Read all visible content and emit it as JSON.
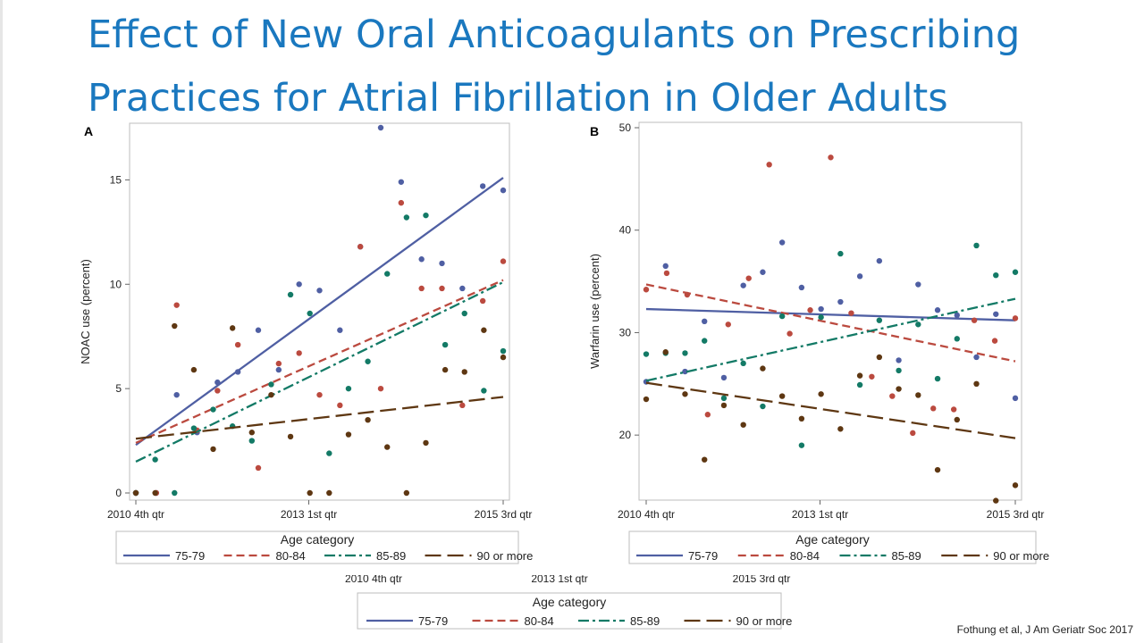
{
  "title": "Effect of New Oral Anticoagulants on Prescribing Practices for Atrial Fibrillation in Older Adults",
  "citation": "Fothung et al, J Am Geriatr Soc 2017",
  "legend": {
    "title": "Age category",
    "entries": [
      "75-79",
      "80-84",
      "85-89",
      "90 or more"
    ]
  },
  "bottom_legend_title": "Age category",
  "ghost_ticks": [
    "2010 4th qtr",
    "2013 1st qtr",
    "2015 3rd qtr"
  ],
  "colors": {
    "title": "#1a78bf",
    "75-79": "#4f5fa3",
    "80-84": "#bb4a3f",
    "85-89": "#137a66",
    "90 or more": "#5e3712"
  },
  "chart_data": [
    {
      "panel": "A",
      "type": "scatter",
      "ylabel": "NOAC use (percent)",
      "xlabel": "",
      "ylim": [
        0,
        17.5
      ],
      "yticks": [
        0,
        5,
        10,
        15
      ],
      "x_tick_labels": [
        "2010 4th qtr",
        "2013 1st qtr",
        "2015 3rd qtr"
      ],
      "series": [
        {
          "name": "75-79",
          "style": "solid",
          "trend": [
            2.3,
            15.1
          ],
          "values": [
            0.0,
            0.0,
            4.7,
            2.9,
            5.3,
            5.8,
            7.8,
            5.9,
            10.0,
            9.7,
            7.8,
            11.8,
            17.5,
            14.9,
            11.2,
            11.0,
            9.8,
            14.7,
            14.5
          ]
        },
        {
          "name": "80-84",
          "style": "dash",
          "trend": [
            2.4,
            10.2
          ],
          "values": [
            0.0,
            0.0,
            9.0,
            3.0,
            4.9,
            7.1,
            1.2,
            6.2,
            6.7,
            4.7,
            4.2,
            11.8,
            5.0,
            13.9,
            9.8,
            9.8,
            4.2,
            9.2,
            11.1
          ]
        },
        {
          "name": "85-89",
          "style": "dashdot",
          "trend": [
            1.5,
            10.1
          ],
          "values": [
            0.0,
            1.6,
            0.0,
            3.1,
            4.0,
            3.2,
            2.5,
            5.2,
            9.5,
            8.6,
            1.9,
            5.0,
            6.3,
            10.5,
            13.2,
            13.3,
            7.1,
            8.6,
            4.9,
            6.8
          ]
        },
        {
          "name": "90 or more",
          "style": "longdash",
          "trend": [
            2.6,
            4.6
          ],
          "values": [
            0.0,
            0.0,
            8.0,
            5.9,
            2.1,
            7.9,
            2.9,
            4.7,
            2.7,
            0.0,
            0.0,
            2.8,
            3.5,
            2.2,
            0.0,
            2.4,
            5.9,
            5.8,
            7.8,
            6.5
          ]
        }
      ]
    },
    {
      "panel": "B",
      "type": "scatter",
      "ylabel": "Warfarin use (percent)",
      "xlabel": "",
      "ylim": [
        14,
        50
      ],
      "yticks": [
        20,
        30,
        40,
        50
      ],
      "x_tick_labels": [
        "2010 4th qtr",
        "2013 1st qtr",
        "2015 3rd qtr"
      ],
      "series": [
        {
          "name": "75-79",
          "style": "solid",
          "trend": [
            32.3,
            31.2
          ],
          "values": [
            25.2,
            36.5,
            26.2,
            31.1,
            25.6,
            34.6,
            35.9,
            38.8,
            34.4,
            32.3,
            33.0,
            35.5,
            37.0,
            27.3,
            34.7,
            32.2,
            31.7,
            27.6,
            31.8,
            23.6
          ]
        },
        {
          "name": "80-84",
          "style": "dash",
          "trend": [
            34.7,
            27.2
          ],
          "values": [
            34.2,
            35.8,
            33.7,
            22.0,
            30.8,
            35.3,
            46.4,
            29.9,
            32.2,
            47.1,
            31.9,
            25.7,
            23.8,
            20.2,
            22.6,
            22.5,
            31.2,
            29.2,
            31.4
          ]
        },
        {
          "name": "85-89",
          "style": "dashdot",
          "trend": [
            25.3,
            33.3
          ],
          "values": [
            27.9,
            28.0,
            28.0,
            29.2,
            23.6,
            27.0,
            22.8,
            31.6,
            19.0,
            31.5,
            37.7,
            24.9,
            31.2,
            26.3,
            30.8,
            25.5,
            29.4,
            38.5,
            35.6,
            35.9
          ]
        },
        {
          "name": "90 or more",
          "style": "longdash",
          "trend": [
            25.1,
            19.7
          ],
          "values": [
            23.5,
            28.1,
            24.0,
            17.6,
            22.9,
            21.0,
            26.5,
            23.8,
            21.6,
            24.0,
            20.6,
            25.8,
            27.6,
            24.5,
            23.9,
            16.6,
            21.5,
            25.0,
            13.6,
            15.1
          ]
        }
      ]
    }
  ]
}
